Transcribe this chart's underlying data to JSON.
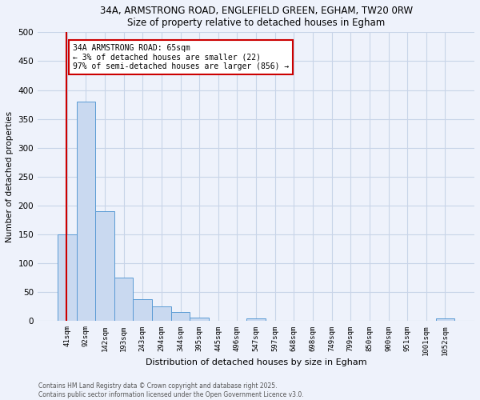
{
  "title_line1": "34A, ARMSTRONG ROAD, ENGLEFIELD GREEN, EGHAM, TW20 0RW",
  "title_line2": "Size of property relative to detached houses in Egham",
  "xlabel": "Distribution of detached houses by size in Egham",
  "ylabel": "Number of detached properties",
  "bar_labels": [
    "41sqm",
    "92sqm",
    "142sqm",
    "193sqm",
    "243sqm",
    "294sqm",
    "344sqm",
    "395sqm",
    "445sqm",
    "496sqm",
    "547sqm",
    "597sqm",
    "648sqm",
    "698sqm",
    "749sqm",
    "799sqm",
    "850sqm",
    "900sqm",
    "951sqm",
    "1001sqm",
    "1052sqm"
  ],
  "bar_values": [
    150,
    380,
    190,
    76,
    38,
    25,
    16,
    6,
    0,
    0,
    5,
    0,
    0,
    0,
    0,
    0,
    0,
    0,
    0,
    0,
    5
  ],
  "bar_color": "#c9d9f0",
  "bar_edge_color": "#5b9bd5",
  "grid_color": "#c8d4e8",
  "background_color": "#eef2fb",
  "vline_color": "#cc0000",
  "annotation_text": "34A ARMSTRONG ROAD: 65sqm\n← 3% of detached houses are smaller (22)\n97% of semi-detached houses are larger (856) →",
  "annotation_box_color": "#ffffff",
  "annotation_box_edge_color": "#cc0000",
  "ylim": [
    0,
    500
  ],
  "yticks": [
    0,
    50,
    100,
    150,
    200,
    250,
    300,
    350,
    400,
    450,
    500
  ],
  "footer_line1": "Contains HM Land Registry data © Crown copyright and database right 2025.",
  "footer_line2": "Contains public sector information licensed under the Open Government Licence v3.0."
}
